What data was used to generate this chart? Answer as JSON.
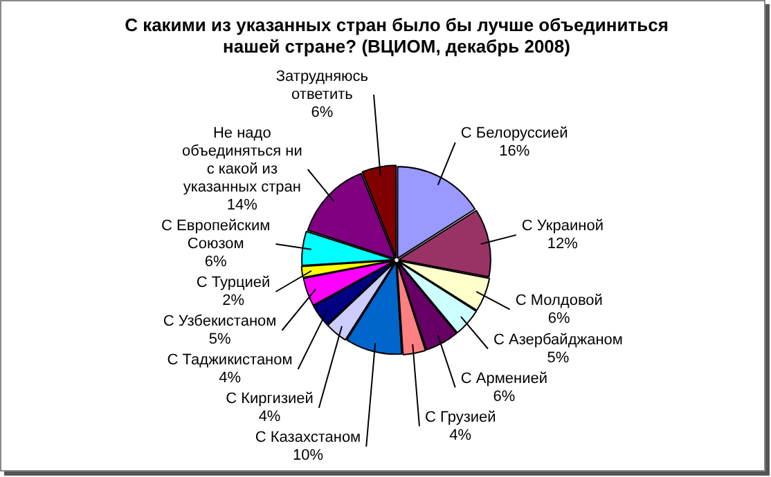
{
  "chart_data": {
    "type": "pie",
    "title": "С какими из указанных стран было бы лучше объединиться нашей стране? (ВЦИОМ, декабрь 2008)",
    "categories": [
      "С Белоруссией",
      "С Украиной",
      "С Молдовой",
      "С Азербайджаном",
      "С Арменией",
      "С Грузией",
      "С Казахстаном",
      "С Киргизией",
      "С Таджикистаном",
      "С Узбекистаном",
      "С Турцией",
      "С Европейским Союзом",
      "Не надо объединяться ни с какой из указанных стран",
      "Затрудняюсь ответить"
    ],
    "values": [
      16,
      12,
      6,
      5,
      6,
      4,
      10,
      4,
      4,
      5,
      2,
      6,
      14,
      6
    ],
    "value_labels": [
      "16%",
      "12%",
      "6%",
      "5%",
      "6%",
      "4%",
      "10%",
      "4%",
      "4%",
      "5%",
      "2%",
      "6%",
      "14%",
      "6%"
    ],
    "colors": [
      "#9999ff",
      "#993366",
      "#ffffcc",
      "#ccffff",
      "#660066",
      "#ff8080",
      "#0066cc",
      "#ccccff",
      "#000080",
      "#ff00ff",
      "#ffff00",
      "#00ffff",
      "#800080",
      "#800000"
    ],
    "legend": false
  }
}
